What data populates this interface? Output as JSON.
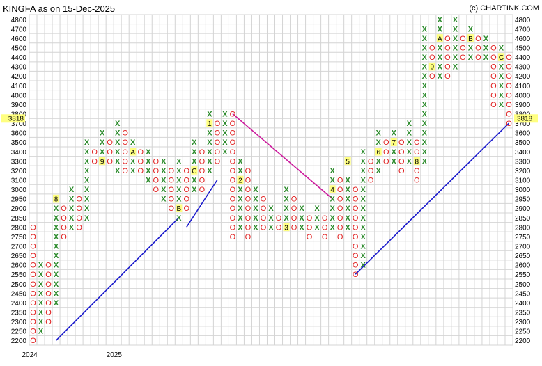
{
  "chart_data": {
    "type": "point-and-figure",
    "title": "KINGFA as on 15-Dec-2025",
    "credit": "(c) CHARTINK.COM",
    "box_size": 50,
    "ylim": [
      2200,
      4800
    ],
    "y_ticks": [
      2200,
      2250,
      2300,
      2350,
      2400,
      2450,
      2500,
      2550,
      2600,
      2650,
      2700,
      2750,
      2800,
      2850,
      2900,
      2950,
      3000,
      3100,
      3200,
      3300,
      3400,
      3500,
      3600,
      3700,
      3800,
      3900,
      4000,
      4100,
      4200,
      4300,
      4400,
      4500,
      4600,
      4700,
      4800
    ],
    "current_price": "3818",
    "x_labels": [
      {
        "col": 0,
        "text": "2024"
      },
      {
        "col": 11,
        "text": "2025"
      }
    ],
    "columns": [
      {
        "type": "O",
        "high": 2800,
        "low": 2200
      },
      {
        "type": "X",
        "high": 2600,
        "low": 2250
      },
      {
        "type": "O",
        "high": 2600,
        "low": 2300
      },
      {
        "type": "X",
        "high": 2950,
        "low": 2400
      },
      {
        "type": "O",
        "high": 2900,
        "low": 2750
      },
      {
        "type": "X",
        "high": 3000,
        "low": 2800
      },
      {
        "type": "O",
        "high": 2950,
        "low": 2800
      },
      {
        "type": "X",
        "high": 3500,
        "low": 2850
      },
      {
        "type": "O",
        "high": 3400,
        "low": 3300
      },
      {
        "type": "X",
        "high": 3600,
        "low": 3300
      },
      {
        "type": "O",
        "high": 3500,
        "low": 3300
      },
      {
        "type": "X",
        "high": 3700,
        "low": 3200
      },
      {
        "type": "O",
        "high": 3600,
        "low": 3200
      },
      {
        "type": "X",
        "high": 3500,
        "low": 3250
      },
      {
        "type": "O",
        "high": 3400,
        "low": 3200
      },
      {
        "type": "X",
        "high": 3400,
        "low": 3100
      },
      {
        "type": "O",
        "high": 3300,
        "low": 3050
      },
      {
        "type": "X",
        "high": 3300,
        "low": 2950
      },
      {
        "type": "O",
        "high": 3200,
        "low": 2900
      },
      {
        "type": "X",
        "high": 3300,
        "low": 2850
      },
      {
        "type": "O",
        "high": 3200,
        "low": 2900
      },
      {
        "type": "X",
        "high": 3500,
        "low": 3000
      },
      {
        "type": "O",
        "high": 3400,
        "low": 3000
      },
      {
        "type": "X",
        "high": 3800,
        "low": 3200
      },
      {
        "type": "O",
        "high": 3700,
        "low": 3350
      },
      {
        "type": "X",
        "high": 3850,
        "low": 3400
      },
      {
        "type": "O",
        "high": 3800,
        "low": 2750
      },
      {
        "type": "X",
        "high": 3300,
        "low": 2800
      },
      {
        "type": "O",
        "high": 3200,
        "low": 2750
      },
      {
        "type": "X",
        "high": 3050,
        "low": 2800
      },
      {
        "type": "O",
        "high": 2950,
        "low": 2800
      },
      {
        "type": "X",
        "high": 2900,
        "low": 2800
      },
      {
        "type": "O",
        "high": 2850,
        "low": 2800
      },
      {
        "type": "X",
        "high": 3000,
        "low": 2800
      },
      {
        "type": "O",
        "high": 2950,
        "low": 2800
      },
      {
        "type": "X",
        "high": 2900,
        "low": 2800
      },
      {
        "type": "O",
        "high": 2850,
        "low": 2750
      },
      {
        "type": "X",
        "high": 2900,
        "low": 2800
      },
      {
        "type": "O",
        "high": 2850,
        "low": 2750
      },
      {
        "type": "X",
        "high": 3200,
        "low": 2800
      },
      {
        "type": "O",
        "high": 3100,
        "low": 2750
      },
      {
        "type": "X",
        "high": 3100,
        "low": 2800
      },
      {
        "type": "O",
        "high": 3050,
        "low": 2550
      },
      {
        "type": "X",
        "high": 3400,
        "low": 2600
      },
      {
        "type": "O",
        "high": 3300,
        "low": 3100
      },
      {
        "type": "X",
        "high": 3600,
        "low": 3200
      },
      {
        "type": "O",
        "high": 3500,
        "low": 3300
      },
      {
        "type": "X",
        "high": 3600,
        "low": 3350
      },
      {
        "type": "O",
        "high": 3500,
        "low": 3200
      },
      {
        "type": "X",
        "high": 3700,
        "low": 3350
      },
      {
        "type": "O",
        "high": 3550,
        "low": 3150
      },
      {
        "type": "X",
        "high": 4700,
        "low": 3300
      },
      {
        "type": "O",
        "high": 4500,
        "low": 4200
      },
      {
        "type": "X",
        "high": 4800,
        "low": 4250
      },
      {
        "type": "O",
        "high": 4600,
        "low": 4200
      },
      {
        "type": "X",
        "high": 4800,
        "low": 4300
      },
      {
        "type": "O",
        "high": 4600,
        "low": 4400
      },
      {
        "type": "X",
        "high": 4700,
        "low": 4450
      },
      {
        "type": "O",
        "high": 4600,
        "low": 4450
      },
      {
        "type": "X",
        "high": 4600,
        "low": 4400
      },
      {
        "type": "O",
        "high": 4500,
        "low": 3900
      },
      {
        "type": "X",
        "high": 4500,
        "low": 3950
      },
      {
        "type": "O",
        "high": 4400,
        "low": 3700
      }
    ],
    "month_labels": [
      {
        "col": 3,
        "price": 2950,
        "text": "8"
      },
      {
        "col": 9,
        "price": 3300,
        "text": "9"
      },
      {
        "col": 13,
        "price": 3400,
        "text": "A"
      },
      {
        "col": 19,
        "price": 2900,
        "text": "B"
      },
      {
        "col": 21,
        "price": 3200,
        "text": "C"
      },
      {
        "col": 23,
        "price": 3700,
        "text": "1"
      },
      {
        "col": 27,
        "price": 3100,
        "text": "2"
      },
      {
        "col": 33,
        "price": 2800,
        "text": "3"
      },
      {
        "col": 39,
        "price": 3000,
        "text": "4"
      },
      {
        "col": 41,
        "price": 3300,
        "text": "5"
      },
      {
        "col": 45,
        "price": 3400,
        "text": "6"
      },
      {
        "col": 47,
        "price": 3500,
        "text": "7"
      },
      {
        "col": 50,
        "price": 3300,
        "text": "8"
      },
      {
        "col": 52,
        "price": 4300,
        "text": "9"
      },
      {
        "col": 53,
        "price": 4600,
        "text": "A"
      },
      {
        "col": 57,
        "price": 4600,
        "text": "B"
      },
      {
        "col": 61,
        "price": 4400,
        "text": "C"
      }
    ],
    "trendlines": [
      {
        "color": "#1a1acc",
        "from": {
          "col": 3,
          "price": 2200
        },
        "to": {
          "col": 19,
          "price": 2850
        }
      },
      {
        "color": "#1a1acc",
        "from": {
          "col": 20,
          "price": 2800
        },
        "to": {
          "col": 24,
          "price": 3100
        }
      },
      {
        "color": "#cc1a9c",
        "from": {
          "col": 26,
          "price": 3800
        },
        "to": {
          "col": 39,
          "price": 2950
        }
      },
      {
        "color": "#1a1acc",
        "from": {
          "col": 42,
          "price": 2550
        },
        "to": {
          "col": 62,
          "price": 3700
        }
      }
    ]
  },
  "colors": {
    "x_mark": "#2a8a2a",
    "o_mark": "#e02020",
    "grid": "#d4d4d4",
    "price_highlight": "#ffff80"
  }
}
